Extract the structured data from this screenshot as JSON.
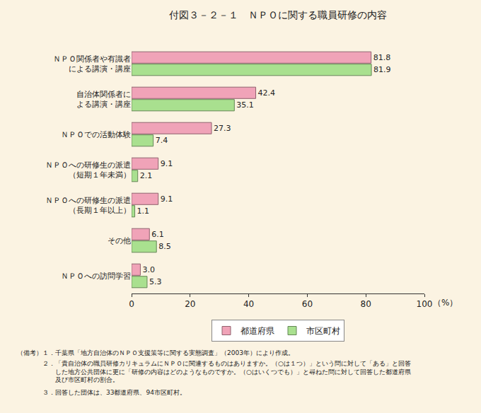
{
  "chart_data": {
    "type": "bar",
    "orientation": "horizontal",
    "title": "付図３－２－１　ＮＰＯに関する職員研修の内容",
    "xlabel": "（%）",
    "categories": [
      "ＮＰＯ関係者や有識者\nによる講演・講座",
      "自治体関係者に\nよる講演・講座",
      "ＮＰＯでの活動体験",
      "ＮＰＯへの研修生の派遣\n（短期１年未満）",
      "ＮＰＯへの研修生の派遣\n（長期１年以上）",
      "その他",
      "ＮＰＯへの訪問学習"
    ],
    "series": [
      {
        "name": "都道府県",
        "color": "#f0a3b8",
        "values": [
          81.8,
          42.4,
          27.3,
          9.1,
          9.1,
          6.1,
          3.0
        ],
        "value_labels": [
          "81.8",
          "42.4",
          "27.3",
          "9.1",
          "9.1",
          "6.1",
          "3.0"
        ]
      },
      {
        "name": "市区町村",
        "color": "#a9e08f",
        "values": [
          81.9,
          35.1,
          7.4,
          2.1,
          1.1,
          8.5,
          5.3
        ],
        "value_labels": [
          "81.9",
          "35.1",
          "7.4",
          "2.1",
          "1.1",
          "8.5",
          "5.3"
        ]
      }
    ],
    "xlim": [
      0,
      100
    ],
    "xticks": [
      0,
      20,
      40,
      60,
      80,
      100
    ],
    "grid": false,
    "legend": "bottom",
    "data_labels": true,
    "annotations": [
      "（備考）１．千葉県「地方自治体のＮＰＯ支援策等に関する実態調査」（2003年）により作成。",
      "　　　　２．「貴自治体の職員研修カリキュラムにＮＰＯに関連するものはありますか。（○は１つ）」という問に対して「ある」と回答\n　　　　　　した地方公共団体に更に「研修の内容はどのようなものですか。（○はいくつでも）」と尋ねた問に対して回答した都道府県\n　　　　　　及び市区町村の割合。",
      "　　　　３．回答した団体は、33都道府県、94市区町村。"
    ]
  }
}
